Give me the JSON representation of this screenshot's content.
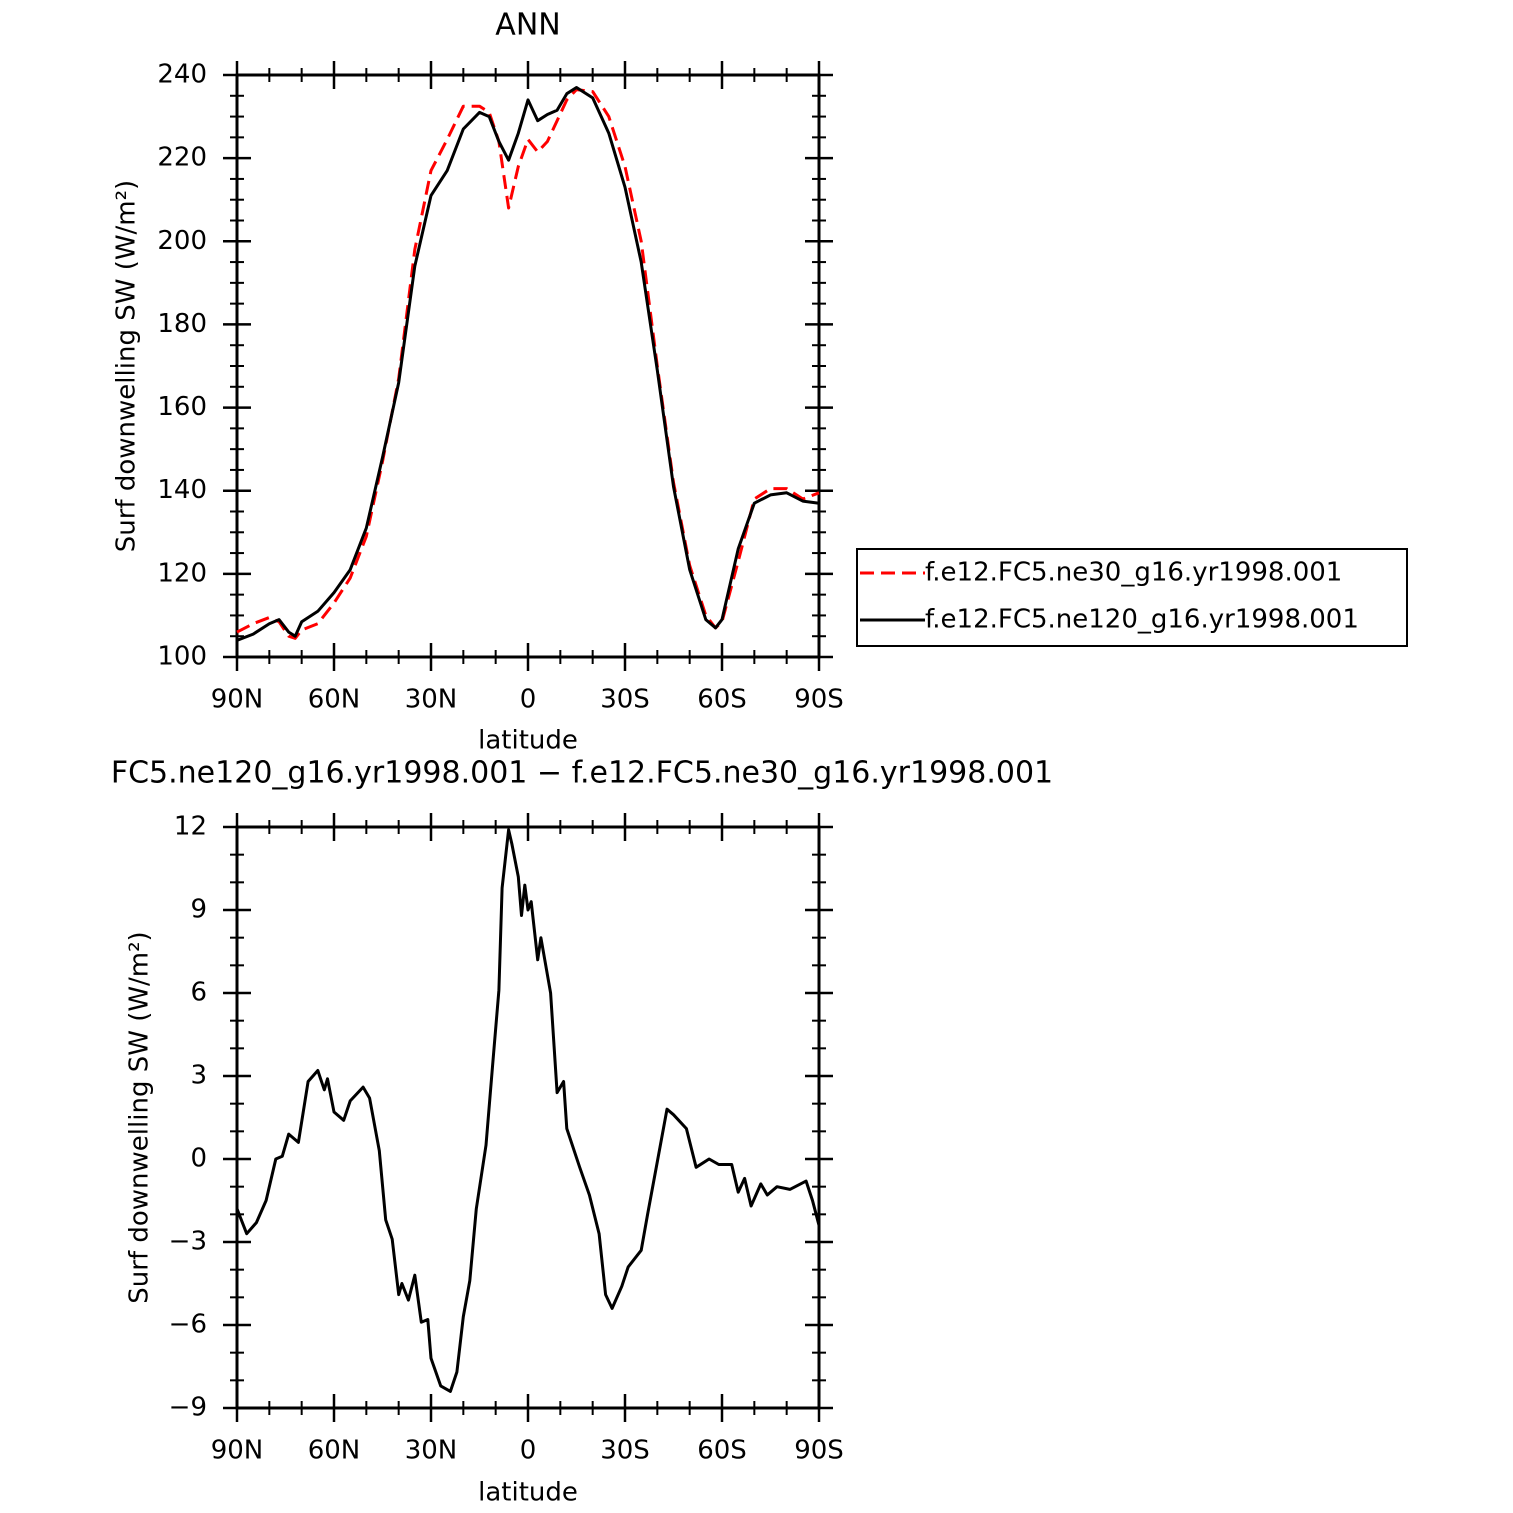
{
  "chart_data": [
    {
      "type": "line",
      "title": "ANN",
      "xlabel": "latitude",
      "ylabel": "Surf downwelling SW (W/m²)",
      "x": [
        90,
        85,
        80,
        77,
        74,
        72,
        70,
        65,
        60,
        55,
        50,
        45,
        40,
        35,
        30,
        25,
        20,
        15,
        12,
        9,
        6,
        3,
        0,
        -3,
        -6,
        -9,
        -12,
        -15,
        -20,
        -25,
        -30,
        -35,
        -40,
        -45,
        -50,
        -55,
        -58,
        -60,
        -65,
        -70,
        -75,
        -80,
        -85,
        -90
      ],
      "series": [
        {
          "name": "f.e12.FC5.ne30_g16.yr1998.001",
          "color": "#ff0000",
          "style": "dashed",
          "values": [
            106,
            108,
            109.5,
            108.5,
            105,
            104.5,
            106.5,
            108,
            113,
            119,
            129,
            147,
            167,
            198,
            217,
            224.5,
            232.5,
            232.5,
            231,
            224,
            208,
            218,
            224.5,
            221.5,
            224,
            229,
            234,
            236.5,
            236,
            230,
            218,
            200,
            170,
            142,
            122,
            110,
            107,
            108.5,
            123,
            138,
            140.5,
            140.5,
            138,
            139.5
          ]
        },
        {
          "name": "f.e12.FC5.ne120_g16.yr1998.001",
          "color": "#000000",
          "style": "solid",
          "values": [
            104,
            105.5,
            108,
            109,
            106,
            105,
            108.5,
            111,
            115.5,
            121,
            131,
            148,
            166,
            194,
            211,
            217,
            227,
            231,
            230,
            224,
            219.5,
            226,
            234,
            229,
            230.5,
            231.5,
            235.5,
            237,
            234.5,
            226,
            213,
            195,
            169,
            141,
            121,
            109,
            107,
            109,
            126,
            137,
            139,
            139.5,
            137.5,
            137
          ]
        }
      ],
      "xlim": [
        90,
        -90
      ],
      "xticks": [
        {
          "value": 90,
          "label": "90N"
        },
        {
          "value": 60,
          "label": "60N"
        },
        {
          "value": 30,
          "label": "30N"
        },
        0,
        {
          "value": -30,
          "label": "30S"
        },
        {
          "value": -60,
          "label": "60S"
        },
        {
          "value": -90,
          "label": "90S"
        }
      ],
      "xminorticks": [
        80,
        70,
        50,
        40,
        20,
        10,
        -10,
        -20,
        -40,
        -50,
        -70,
        -80
      ],
      "ylim": [
        100,
        240
      ],
      "yticks": [
        100,
        120,
        140,
        160,
        180,
        200,
        220,
        240
      ],
      "yminorticks": [
        105,
        110,
        115,
        125,
        130,
        135,
        145,
        150,
        155,
        165,
        170,
        175,
        185,
        190,
        195,
        205,
        210,
        215,
        225,
        230,
        235
      ],
      "legend": "right"
    },
    {
      "type": "line",
      "title": "FC5.ne120_g16.yr1998.001 − f.e12.FC5.ne30_g16.yr1998.001",
      "xlabel": "latitude",
      "ylabel": "Surf downwelling SW (W/m²)",
      "x": [
        90,
        87,
        84,
        81,
        78,
        76,
        74,
        71,
        68,
        65,
        63,
        62,
        60,
        57,
        55,
        51,
        49,
        46,
        44,
        42,
        40,
        39,
        37,
        35,
        33,
        31,
        30,
        27,
        24,
        22,
        20,
        18,
        16,
        13,
        11,
        9,
        8,
        6,
        5,
        3,
        2,
        1,
        0,
        -1,
        -3,
        -4,
        -7,
        -9,
        -11,
        -12,
        -16,
        -19,
        -22,
        -24,
        -26,
        -29,
        -31,
        -35,
        -37,
        -40,
        -43,
        -45,
        -49,
        -52,
        -56,
        -59,
        -63,
        -65,
        -67,
        -69,
        -72,
        -74,
        -77,
        -81,
        -86,
        -88,
        -90
      ],
      "values": [
        -1.8,
        -2.7,
        -2.3,
        -1.5,
        0,
        0.1,
        0.9,
        0.6,
        2.8,
        3.2,
        2.5,
        2.9,
        1.7,
        1.4,
        2.1,
        2.6,
        2.2,
        0.3,
        -2.2,
        -2.9,
        -4.9,
        -4.5,
        -5.1,
        -4.2,
        -5.9,
        -5.8,
        -7.2,
        -8.2,
        -8.4,
        -7.7,
        -5.7,
        -4.4,
        -1.8,
        0.5,
        3.3,
        6.1,
        9.8,
        11.9,
        11.4,
        10.2,
        8.8,
        9.9,
        9.0,
        9.3,
        7.2,
        8.0,
        6.0,
        2.4,
        2.8,
        1.1,
        -0.3,
        -1.3,
        -2.7,
        -4.9,
        -5.4,
        -4.6,
        -3.9,
        -3.3,
        -2,
        -0.1,
        1.8,
        1.6,
        1.1,
        -0.3,
        0,
        -0.2,
        -0.2,
        -1.2,
        -0.7,
        -1.7,
        -0.9,
        -1.3,
        -1.0,
        -1.1,
        -0.8,
        -1.5,
        -2.4
      ],
      "color": "#000000",
      "style": "solid",
      "xlim": [
        90,
        -90
      ],
      "xticks": [
        {
          "value": 90,
          "label": "90N"
        },
        {
          "value": 60,
          "label": "60N"
        },
        {
          "value": 30,
          "label": "30N"
        },
        0,
        {
          "value": -30,
          "label": "30S"
        },
        {
          "value": -60,
          "label": "60S"
        },
        {
          "value": -90,
          "label": "90S"
        }
      ],
      "xminorticks": [
        80,
        70,
        50,
        40,
        20,
        10,
        -10,
        -20,
        -40,
        -50,
        -70,
        -80
      ],
      "ylim": [
        -9,
        12
      ],
      "yticks": [
        {
          "value": -9,
          "label": "−9"
        },
        {
          "value": -6,
          "label": "−6"
        },
        {
          "value": -3,
          "label": "−3"
        },
        0,
        3,
        6,
        9,
        12
      ],
      "yminorticks": [
        -8,
        -7,
        -5,
        -4,
        -2,
        -1,
        1,
        2,
        4,
        5,
        7,
        8,
        10,
        11
      ]
    }
  ]
}
